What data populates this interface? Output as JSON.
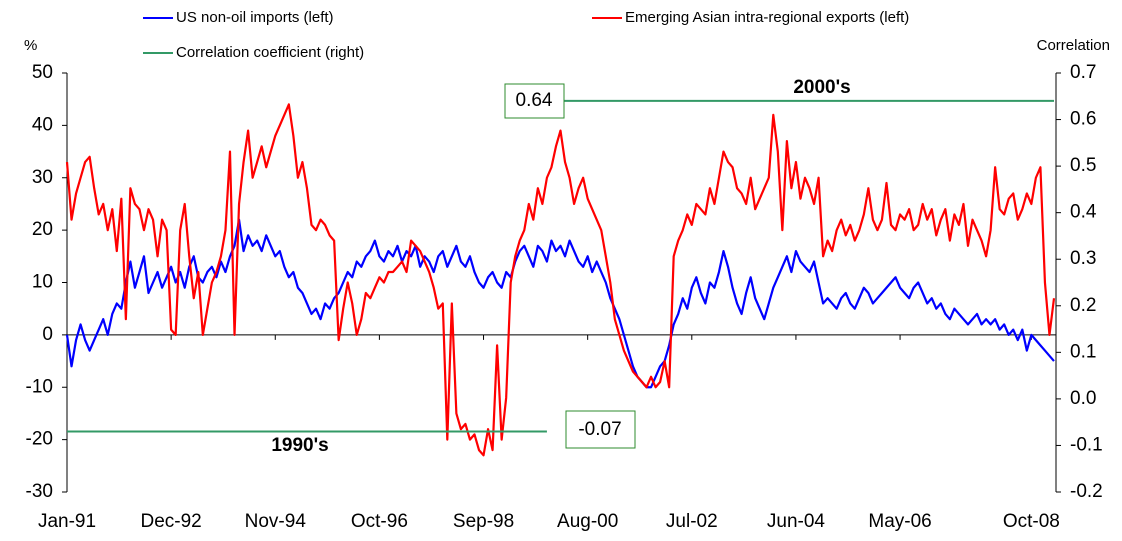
{
  "chart_data": {
    "type": "line",
    "y_label": "%",
    "y2_label": "Correlation",
    "categories": [
      "Jan-91",
      null,
      null,
      null,
      null,
      null,
      null,
      null,
      null,
      null,
      null,
      null,
      null,
      null,
      null,
      null,
      null,
      null,
      null,
      null,
      null,
      null,
      null,
      "Dec-92",
      null,
      null,
      null,
      null,
      null,
      null,
      null,
      null,
      null,
      null,
      null,
      null,
      null,
      null,
      null,
      null,
      null,
      null,
      null,
      null,
      null,
      null,
      "Nov-94",
      null,
      null,
      null,
      null,
      null,
      null,
      null,
      null,
      null,
      null,
      null,
      null,
      null,
      null,
      null,
      null,
      null,
      null,
      null,
      null,
      null,
      null,
      "Oct-96",
      null,
      null,
      null,
      null,
      null,
      null,
      null,
      null,
      null,
      null,
      null,
      null,
      null,
      null,
      null,
      null,
      null,
      null,
      null,
      null,
      null,
      null,
      "Sep-98",
      null,
      null,
      null,
      null,
      null,
      null,
      null,
      null,
      null,
      null,
      null,
      null,
      null,
      null,
      null,
      null,
      null,
      null,
      null,
      null,
      null,
      null,
      "Aug-00",
      null,
      null,
      null,
      null,
      null,
      null,
      null,
      null,
      null,
      null,
      null,
      null,
      null,
      null,
      null,
      null,
      null,
      null,
      null,
      null,
      null,
      null,
      "Jul-02",
      null,
      null,
      null,
      null,
      null,
      null,
      null,
      null,
      null,
      null,
      null,
      null,
      null,
      null,
      null,
      null,
      null,
      null,
      null,
      null,
      null,
      null,
      "Jun-04",
      null,
      null,
      null,
      null,
      null,
      null,
      null,
      null,
      null,
      null,
      null,
      null,
      null,
      null,
      null,
      null,
      null,
      null,
      null,
      null,
      null,
      null,
      "May-06",
      null,
      null,
      null,
      null,
      null,
      null,
      null,
      null,
      null,
      null,
      null,
      null,
      null,
      null,
      null,
      null,
      null,
      null,
      null,
      null,
      null,
      null,
      null,
      null,
      null,
      null,
      null,
      null,
      "Oct-08",
      null,
      null,
      null,
      null,
      null
    ],
    "series": [
      {
        "name": "US non-oil imports (left)",
        "color": "#0000ff",
        "axis": "y",
        "values": [
          0,
          -6,
          -1,
          2,
          -1,
          -3,
          -1,
          1,
          3,
          0,
          4,
          6,
          5,
          10,
          14,
          9,
          12,
          15,
          8,
          10,
          12,
          9,
          11,
          13,
          10,
          12,
          9,
          13,
          15,
          11,
          10,
          12,
          13,
          11,
          14,
          12,
          15,
          17,
          22,
          16,
          19,
          17,
          18,
          16,
          19,
          17,
          15,
          16,
          13,
          11,
          12,
          9,
          8,
          6,
          4,
          5,
          3,
          6,
          5,
          7,
          8,
          10,
          12,
          11,
          14,
          13,
          15,
          16,
          18,
          15,
          14,
          16,
          15,
          17,
          14,
          16,
          15,
          17,
          13,
          15,
          14,
          12,
          15,
          16,
          13,
          15,
          17,
          14,
          13,
          15,
          12,
          10,
          9,
          11,
          12,
          10,
          9,
          12,
          11,
          14,
          16,
          17,
          15,
          13,
          17,
          16,
          14,
          18,
          16,
          17,
          15,
          18,
          16,
          14,
          13,
          15,
          12,
          14,
          12,
          10,
          7,
          5,
          3,
          0,
          -3,
          -6,
          -8,
          -9,
          -10,
          -10,
          -8,
          -6,
          -5,
          -2,
          2,
          4,
          7,
          5,
          9,
          11,
          8,
          6,
          10,
          9,
          12,
          16,
          13,
          9,
          6,
          4,
          8,
          11,
          7,
          5,
          3,
          6,
          9,
          11,
          13,
          15,
          12,
          16,
          14,
          13,
          12,
          14,
          10,
          6,
          7,
          6,
          5,
          7,
          8,
          6,
          5,
          7,
          9,
          8,
          6,
          7,
          8,
          9,
          10,
          11,
          9,
          8,
          7,
          9,
          10,
          8,
          6,
          7,
          5,
          6,
          4,
          3,
          5,
          4,
          3,
          2,
          3,
          4,
          2,
          3,
          2,
          3,
          1,
          2,
          0,
          1,
          -1,
          1,
          -3,
          0,
          -1,
          -2,
          -3,
          -4,
          -5
        ]
      },
      {
        "name": "Emerging Asian intra-regional exports (left)",
        "color": "#ff0000",
        "axis": "y",
        "values": [
          33,
          22,
          27,
          30,
          33,
          34,
          28,
          23,
          25,
          20,
          24,
          16,
          26,
          3,
          28,
          25,
          24,
          20,
          24,
          22,
          15,
          22,
          20,
          1,
          0,
          20,
          25,
          15,
          7,
          12,
          0,
          5,
          10,
          12,
          15,
          20,
          35,
          0,
          25,
          33,
          39,
          30,
          33,
          36,
          32,
          35,
          38,
          40,
          42,
          44,
          38,
          30,
          33,
          28,
          21,
          20,
          22,
          21,
          19,
          18,
          -1,
          5,
          10,
          6,
          0,
          3,
          8,
          7,
          9,
          11,
          10,
          12,
          12,
          13,
          14,
          12,
          18,
          17,
          16,
          14,
          12,
          9,
          5,
          6,
          -20,
          6,
          -15,
          -18,
          -17,
          -20,
          -19,
          -22,
          -23,
          -18,
          -22,
          -2,
          -20,
          -12,
          10,
          15,
          18,
          20,
          25,
          22,
          28,
          25,
          30,
          32,
          36,
          39,
          33,
          30,
          25,
          28,
          30,
          26,
          24,
          22,
          20,
          15,
          10,
          3,
          0,
          -3,
          -5,
          -7,
          -8,
          -9,
          -10,
          -8,
          -10,
          -9,
          -5,
          -10,
          15,
          18,
          20,
          23,
          21,
          25,
          24,
          23,
          28,
          25,
          30,
          35,
          33,
          32,
          28,
          27,
          25,
          30,
          24,
          26,
          28,
          30,
          42,
          35,
          20,
          37,
          28,
          33,
          26,
          30,
          28,
          25,
          30,
          15,
          18,
          16,
          20,
          22,
          19,
          21,
          18,
          20,
          23,
          28,
          22,
          20,
          22,
          29,
          21,
          20,
          23,
          22,
          24,
          20,
          21,
          25,
          22,
          24,
          19,
          22,
          24,
          18,
          23,
          21,
          25,
          17,
          22,
          20,
          18,
          15,
          20,
          32,
          24,
          23,
          26,
          27,
          22,
          24,
          27,
          25,
          30,
          32,
          10,
          0,
          7
        ]
      },
      {
        "name": "Correlation coefficient (right)",
        "color": "#339966",
        "axis": "y2",
        "values": [
          -0.07,
          -0.07,
          -0.07,
          -0.07,
          -0.07,
          -0.07,
          -0.07,
          -0.07,
          -0.07,
          -0.07,
          -0.07,
          -0.07,
          -0.07,
          -0.07,
          -0.07,
          -0.07,
          -0.07,
          -0.07,
          -0.07,
          -0.07,
          -0.07,
          -0.07,
          -0.07,
          -0.07,
          -0.07,
          -0.07,
          -0.07,
          -0.07,
          -0.07,
          -0.07,
          -0.07,
          -0.07,
          -0.07,
          -0.07,
          -0.07,
          -0.07,
          -0.07,
          -0.07,
          -0.07,
          -0.07,
          -0.07,
          -0.07,
          -0.07,
          -0.07,
          -0.07,
          -0.07,
          -0.07,
          -0.07,
          -0.07,
          -0.07,
          -0.07,
          -0.07,
          -0.07,
          -0.07,
          -0.07,
          -0.07,
          -0.07,
          -0.07,
          -0.07,
          -0.07,
          -0.07,
          -0.07,
          -0.07,
          -0.07,
          -0.07,
          -0.07,
          -0.07,
          -0.07,
          -0.07,
          -0.07,
          -0.07,
          -0.07,
          -0.07,
          -0.07,
          -0.07,
          -0.07,
          -0.07,
          -0.07,
          -0.07,
          -0.07,
          -0.07,
          -0.07,
          -0.07,
          -0.07,
          -0.07,
          -0.07,
          -0.07,
          -0.07,
          -0.07,
          -0.07,
          -0.07,
          -0.07,
          -0.07,
          -0.07,
          -0.07,
          -0.07,
          -0.07,
          -0.07,
          -0.07,
          -0.07,
          -0.07,
          -0.07,
          -0.07,
          -0.07,
          -0.07,
          -0.07,
          -0.07,
          null,
          0.64,
          0.64,
          0.64,
          0.64,
          0.64,
          0.64,
          0.64,
          0.64,
          0.64,
          0.64,
          0.64,
          0.64,
          0.64,
          0.64,
          0.64,
          0.64,
          0.64,
          0.64,
          0.64,
          0.64,
          0.64,
          0.64,
          0.64,
          0.64,
          0.64,
          0.64,
          0.64,
          0.64,
          0.64,
          0.64,
          0.64,
          0.64,
          0.64,
          0.64,
          0.64,
          0.64,
          0.64,
          0.64,
          0.64,
          0.64,
          0.64,
          0.64,
          0.64,
          0.64,
          0.64,
          0.64,
          0.64,
          0.64,
          0.64,
          0.64,
          0.64,
          0.64,
          0.64,
          0.64,
          0.64,
          0.64,
          0.64,
          0.64,
          0.64,
          0.64,
          0.64,
          0.64,
          0.64,
          0.64,
          0.64,
          0.64,
          0.64,
          0.64,
          0.64,
          0.64,
          0.64,
          0.64,
          0.64,
          0.64,
          0.64,
          0.64,
          0.64,
          0.64,
          0.64,
          0.64,
          0.64,
          0.64,
          0.64,
          0.64,
          0.64,
          0.64,
          0.64,
          0.64,
          0.64,
          0.64,
          0.64,
          0.64,
          0.64,
          0.64,
          0.64,
          0.64,
          0.64,
          0.64,
          0.64,
          0.64,
          0.64,
          0.64,
          0.64,
          0.64,
          0.64,
          0.64,
          0.64,
          0.64,
          0.64,
          0.64,
          0.64
        ]
      }
    ],
    "annotations": [
      "0.64",
      "-0.07",
      "1990's",
      "2000's"
    ],
    "annotation_color": "#2e8b2e",
    "ylim": [
      -30,
      50
    ],
    "yticks": [
      -30,
      -20,
      -10,
      0,
      10,
      20,
      30,
      40,
      50
    ],
    "y2lim": [
      -0.2,
      0.7
    ],
    "y2ticks": [
      -0.2,
      -0.1,
      {
        "value": 0,
        "label": "0.0"
      },
      0.1,
      0.2,
      0.3,
      0.4,
      0.5,
      0.6,
      0.7
    ],
    "grid": false
  }
}
